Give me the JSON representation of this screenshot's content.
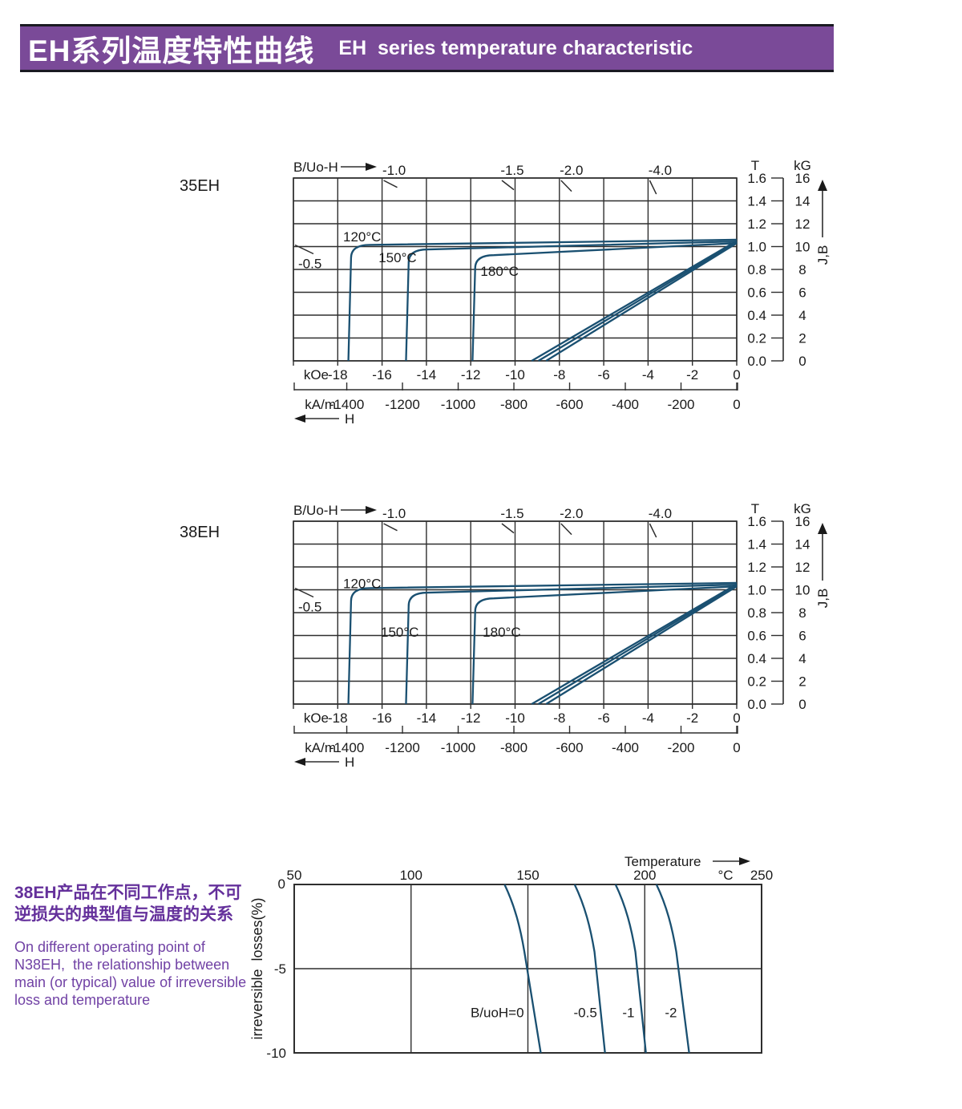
{
  "header": {
    "title_zh": "EH系列温度特性曲线",
    "title_en": "EH  series temperature characteristic"
  },
  "colors": {
    "banner_bg": "#7a4a98",
    "banner_border": "#1a1a22",
    "banner_text": "#ffffff",
    "curve": "#1a5071",
    "grid": "#2e2e2e",
    "axis_text": "#1a1a1a",
    "desc_zh": "#64309b",
    "desc_en": "#7142a5"
  },
  "description": {
    "zh_lines": [
      "38EH产品在不同工作点，不可",
      "逆损失的典型值与温度的关系"
    ],
    "en_lines": [
      "On different operating point of",
      "N38EH,  the relationship between",
      "main (or typical) value of irreversible",
      "loss and temperature"
    ]
  },
  "chart_data": [
    {
      "type": "line",
      "id": "demag-35eh",
      "title": "35EH",
      "axes": {
        "corner_label": "B/Uo-H",
        "x_label": "H",
        "x_units": [
          "kOe",
          "kA/m"
        ],
        "x_range_koe": [
          -20,
          0
        ],
        "x_ticks_koe": [
          -18,
          -16,
          -14,
          -12,
          -10,
          -8,
          -6,
          -4,
          -2,
          0
        ],
        "x_ticks_kam": [
          -1400,
          -1200,
          -1000,
          -800,
          -600,
          -400,
          -200,
          0
        ],
        "y_label": "J,B",
        "y_units": [
          "T",
          "kG"
        ],
        "y_range_t": [
          0,
          1.6
        ],
        "y_ticks_t": [
          "1.6",
          "1.4",
          "1.2",
          "1.0",
          "0.8",
          "0.6",
          "0.4",
          "0.2",
          "0.0"
        ],
        "y_ticks_kg": [
          16,
          14,
          12,
          10,
          8,
          6,
          4,
          2,
          0
        ],
        "grid": true
      },
      "load_lines": {
        "top": [
          {
            "label": "-1.0",
            "ratio": 1.0,
            "h_at_top_koe": -16
          },
          {
            "label": "-1.5",
            "ratio": 1.5,
            "h_at_top_koe": -10.67
          },
          {
            "label": "-2.0",
            "ratio": 2.0,
            "h_at_top_koe": -8
          },
          {
            "label": "-4.0",
            "ratio": 4.0,
            "h_at_top_koe": -4
          }
        ],
        "left": {
          "label": "-0.5",
          "ratio": 0.5,
          "b_at_left_t": 1.0
        }
      },
      "series": [
        {
          "name": "120°C J curve",
          "kind": "J",
          "temp": "120°C",
          "points_koe_t": [
            [
              0,
              1.06
            ],
            [
              -16.55,
              1.015
            ],
            [
              -17.4,
              0.9
            ],
            [
              -17.52,
              0
            ]
          ]
        },
        {
          "name": "120°C B curve",
          "kind": "B",
          "temp": "120°C",
          "points_koe_t": [
            [
              0,
              1.05
            ],
            [
              -9.25,
              0
            ]
          ]
        },
        {
          "name": "150°C J curve",
          "kind": "J",
          "temp": "150°C",
          "points_koe_t": [
            [
              0,
              1.045
            ],
            [
              -13.95,
              0.975
            ],
            [
              -14.8,
              0.86
            ],
            [
              -14.92,
              0
            ]
          ]
        },
        {
          "name": "150°C B curve",
          "kind": "B",
          "temp": "150°C",
          "points_koe_t": [
            [
              0,
              1.04
            ],
            [
              -8.95,
              0
            ]
          ]
        },
        {
          "name": "180°C J curve",
          "kind": "J",
          "temp": "180°C",
          "points_koe_t": [
            [
              0,
              1.03
            ],
            [
              -10.95,
              0.925
            ],
            [
              -11.8,
              0.81
            ],
            [
              -11.92,
              0
            ]
          ]
        },
        {
          "name": "180°C B curve",
          "kind": "B",
          "temp": "180°C",
          "points_koe_t": [
            [
              0,
              1.03
            ],
            [
              -8.6,
              0
            ]
          ]
        }
      ],
      "curve_labels": [
        {
          "text": "120°C",
          "h_koe": -16.9,
          "b_t": 1.088
        },
        {
          "text": "150°C",
          "h_koe": -15.3,
          "b_t": 0.905
        },
        {
          "text": "180°C",
          "h_koe": -10.7,
          "b_t": 0.786
        }
      ]
    },
    {
      "type": "line",
      "id": "demag-38eh",
      "title": "38EH",
      "axes": {
        "corner_label": "B/Uo-H",
        "x_label": "H",
        "x_units": [
          "kOe",
          "kA/m"
        ],
        "x_range_koe": [
          -20,
          0
        ],
        "x_ticks_koe": [
          -18,
          -16,
          -14,
          -12,
          -10,
          -8,
          -6,
          -4,
          -2,
          0
        ],
        "x_ticks_kam": [
          -1400,
          -1200,
          -1000,
          -800,
          -600,
          -400,
          -200,
          0
        ],
        "y_label": "J,B",
        "y_units": [
          "T",
          "kG"
        ],
        "y_range_t": [
          0,
          1.6
        ],
        "y_ticks_t": [
          "1.6",
          "1.4",
          "1.2",
          "1.0",
          "0.8",
          "0.6",
          "0.4",
          "0.2",
          "0.0"
        ],
        "y_ticks_kg": [
          16,
          14,
          12,
          10,
          8,
          6,
          4,
          2,
          0
        ],
        "grid": true
      },
      "load_lines": {
        "top": [
          {
            "label": "-1.0",
            "ratio": 1.0,
            "h_at_top_koe": -16
          },
          {
            "label": "-1.5",
            "ratio": 1.5,
            "h_at_top_koe": -10.67
          },
          {
            "label": "-2.0",
            "ratio": 2.0,
            "h_at_top_koe": -8
          },
          {
            "label": "-4.0",
            "ratio": 4.0,
            "h_at_top_koe": -4
          }
        ],
        "left": {
          "label": "-0.5",
          "ratio": 0.5,
          "b_at_left_t": 1.0
        }
      },
      "series": [
        {
          "name": "120°C J curve",
          "kind": "J",
          "temp": "120°C",
          "points_koe_t": [
            [
              0,
              1.06
            ],
            [
              -16.55,
              1.015
            ],
            [
              -17.4,
              0.9
            ],
            [
              -17.52,
              0
            ]
          ]
        },
        {
          "name": "120°C B curve",
          "kind": "B",
          "temp": "120°C",
          "points_koe_t": [
            [
              0,
              1.05
            ],
            [
              -9.25,
              0
            ]
          ]
        },
        {
          "name": "150°C J curve",
          "kind": "J",
          "temp": "150°C",
          "points_koe_t": [
            [
              0,
              1.045
            ],
            [
              -13.95,
              0.975
            ],
            [
              -14.8,
              0.86
            ],
            [
              -14.92,
              0
            ]
          ]
        },
        {
          "name": "150°C B curve",
          "kind": "B",
          "temp": "150°C",
          "points_koe_t": [
            [
              0,
              1.04
            ],
            [
              -8.95,
              0
            ]
          ]
        },
        {
          "name": "180°C J curve",
          "kind": "J",
          "temp": "180°C",
          "points_koe_t": [
            [
              0,
              1.03
            ],
            [
              -10.95,
              0.925
            ],
            [
              -11.8,
              0.81
            ],
            [
              -11.92,
              0
            ]
          ]
        },
        {
          "name": "180°C B curve",
          "kind": "B",
          "temp": "180°C",
          "points_koe_t": [
            [
              0,
              1.03
            ],
            [
              -8.6,
              0
            ]
          ]
        }
      ],
      "curve_labels": [
        {
          "text": "120°C",
          "h_koe": -16.9,
          "b_t": 1.055
        },
        {
          "text": "150°C",
          "h_koe": -15.2,
          "b_t": 0.631
        },
        {
          "text": "180°C",
          "h_koe": -10.6,
          "b_t": 0.631
        }
      ]
    },
    {
      "type": "line",
      "id": "irreversible-loss",
      "title": "",
      "x_label": "Temperature",
      "x_unit": "°C",
      "x_range": [
        50,
        250
      ],
      "x_ticks": [
        50,
        100,
        150,
        200,
        250
      ],
      "y_label": "irreversible  losses(%)",
      "y_range": [
        -10,
        0
      ],
      "y_ticks": [
        "0",
        "-5",
        "-10"
      ],
      "series": [
        {
          "name": "B/uoH=0",
          "points_c_pct": [
            [
              140,
              0
            ],
            [
              144.5,
              -1.3
            ],
            [
              146.8,
              -2.6
            ],
            [
              148.5,
              -4
            ],
            [
              155.5,
              -10
            ]
          ]
        },
        {
          "name": "-0.5",
          "points_c_pct": [
            [
              170,
              0
            ],
            [
              174.5,
              -1.3
            ],
            [
              176.8,
              -2.6
            ],
            [
              178.5,
              -4
            ],
            [
              183,
              -10
            ]
          ]
        },
        {
          "name": "-1",
          "points_c_pct": [
            [
              187.5,
              0
            ],
            [
              192,
              -1.3
            ],
            [
              194.3,
              -2.6
            ],
            [
              196,
              -4
            ],
            [
              200.5,
              -10
            ]
          ]
        },
        {
          "name": "-2",
          "points_c_pct": [
            [
              205,
              0
            ],
            [
              209.5,
              -1.3
            ],
            [
              211.8,
              -2.6
            ],
            [
              213.5,
              -4
            ],
            [
              219,
              -10
            ]
          ]
        }
      ],
      "curve_labels": [
        {
          "text": "B/uoH=0",
          "t_c": 149,
          "loss_pct": -7.6
        },
        {
          "text": "-0.5",
          "t_c": 180.3,
          "loss_pct": -7.6
        },
        {
          "text": "-1",
          "t_c": 196.3,
          "loss_pct": -7.6
        },
        {
          "text": "-2",
          "t_c": 214.5,
          "loss_pct": -7.6
        }
      ]
    }
  ]
}
